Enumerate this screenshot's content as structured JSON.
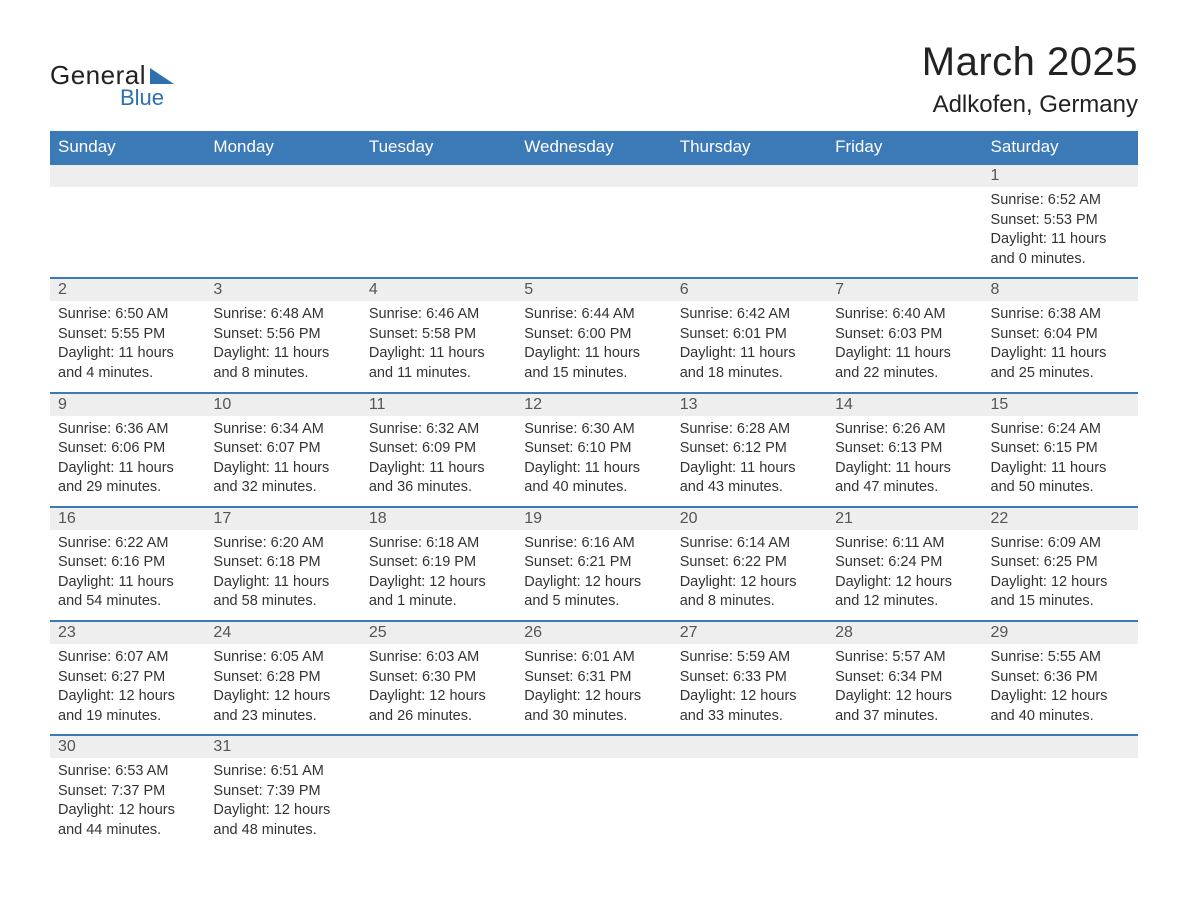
{
  "logo": {
    "text1": "General",
    "text2": "Blue"
  },
  "title": "March 2025",
  "location": "Adlkofen, Germany",
  "colors": {
    "header_bg": "#3b79b7",
    "header_text": "#ffffff",
    "row_divider": "#3b79b7",
    "daynum_bg": "#eeeeee",
    "body_text": "#333333",
    "page_bg": "#ffffff",
    "logo_accent": "#2f6fb0"
  },
  "font": {
    "family": "Arial",
    "title_size_pt": 30,
    "location_size_pt": 18,
    "header_size_pt": 13,
    "day_body_size_pt": 11
  },
  "weekdays": [
    "Sunday",
    "Monday",
    "Tuesday",
    "Wednesday",
    "Thursday",
    "Friday",
    "Saturday"
  ],
  "weeks": [
    [
      null,
      null,
      null,
      null,
      null,
      null,
      {
        "n": "1",
        "sunrise": "Sunrise: 6:52 AM",
        "sunset": "Sunset: 5:53 PM",
        "daylight": "Daylight: 11 hours and 0 minutes."
      }
    ],
    [
      {
        "n": "2",
        "sunrise": "Sunrise: 6:50 AM",
        "sunset": "Sunset: 5:55 PM",
        "daylight": "Daylight: 11 hours and 4 minutes."
      },
      {
        "n": "3",
        "sunrise": "Sunrise: 6:48 AM",
        "sunset": "Sunset: 5:56 PM",
        "daylight": "Daylight: 11 hours and 8 minutes."
      },
      {
        "n": "4",
        "sunrise": "Sunrise: 6:46 AM",
        "sunset": "Sunset: 5:58 PM",
        "daylight": "Daylight: 11 hours and 11 minutes."
      },
      {
        "n": "5",
        "sunrise": "Sunrise: 6:44 AM",
        "sunset": "Sunset: 6:00 PM",
        "daylight": "Daylight: 11 hours and 15 minutes."
      },
      {
        "n": "6",
        "sunrise": "Sunrise: 6:42 AM",
        "sunset": "Sunset: 6:01 PM",
        "daylight": "Daylight: 11 hours and 18 minutes."
      },
      {
        "n": "7",
        "sunrise": "Sunrise: 6:40 AM",
        "sunset": "Sunset: 6:03 PM",
        "daylight": "Daylight: 11 hours and 22 minutes."
      },
      {
        "n": "8",
        "sunrise": "Sunrise: 6:38 AM",
        "sunset": "Sunset: 6:04 PM",
        "daylight": "Daylight: 11 hours and 25 minutes."
      }
    ],
    [
      {
        "n": "9",
        "sunrise": "Sunrise: 6:36 AM",
        "sunset": "Sunset: 6:06 PM",
        "daylight": "Daylight: 11 hours and 29 minutes."
      },
      {
        "n": "10",
        "sunrise": "Sunrise: 6:34 AM",
        "sunset": "Sunset: 6:07 PM",
        "daylight": "Daylight: 11 hours and 32 minutes."
      },
      {
        "n": "11",
        "sunrise": "Sunrise: 6:32 AM",
        "sunset": "Sunset: 6:09 PM",
        "daylight": "Daylight: 11 hours and 36 minutes."
      },
      {
        "n": "12",
        "sunrise": "Sunrise: 6:30 AM",
        "sunset": "Sunset: 6:10 PM",
        "daylight": "Daylight: 11 hours and 40 minutes."
      },
      {
        "n": "13",
        "sunrise": "Sunrise: 6:28 AM",
        "sunset": "Sunset: 6:12 PM",
        "daylight": "Daylight: 11 hours and 43 minutes."
      },
      {
        "n": "14",
        "sunrise": "Sunrise: 6:26 AM",
        "sunset": "Sunset: 6:13 PM",
        "daylight": "Daylight: 11 hours and 47 minutes."
      },
      {
        "n": "15",
        "sunrise": "Sunrise: 6:24 AM",
        "sunset": "Sunset: 6:15 PM",
        "daylight": "Daylight: 11 hours and 50 minutes."
      }
    ],
    [
      {
        "n": "16",
        "sunrise": "Sunrise: 6:22 AM",
        "sunset": "Sunset: 6:16 PM",
        "daylight": "Daylight: 11 hours and 54 minutes."
      },
      {
        "n": "17",
        "sunrise": "Sunrise: 6:20 AM",
        "sunset": "Sunset: 6:18 PM",
        "daylight": "Daylight: 11 hours and 58 minutes."
      },
      {
        "n": "18",
        "sunrise": "Sunrise: 6:18 AM",
        "sunset": "Sunset: 6:19 PM",
        "daylight": "Daylight: 12 hours and 1 minute."
      },
      {
        "n": "19",
        "sunrise": "Sunrise: 6:16 AM",
        "sunset": "Sunset: 6:21 PM",
        "daylight": "Daylight: 12 hours and 5 minutes."
      },
      {
        "n": "20",
        "sunrise": "Sunrise: 6:14 AM",
        "sunset": "Sunset: 6:22 PM",
        "daylight": "Daylight: 12 hours and 8 minutes."
      },
      {
        "n": "21",
        "sunrise": "Sunrise: 6:11 AM",
        "sunset": "Sunset: 6:24 PM",
        "daylight": "Daylight: 12 hours and 12 minutes."
      },
      {
        "n": "22",
        "sunrise": "Sunrise: 6:09 AM",
        "sunset": "Sunset: 6:25 PM",
        "daylight": "Daylight: 12 hours and 15 minutes."
      }
    ],
    [
      {
        "n": "23",
        "sunrise": "Sunrise: 6:07 AM",
        "sunset": "Sunset: 6:27 PM",
        "daylight": "Daylight: 12 hours and 19 minutes."
      },
      {
        "n": "24",
        "sunrise": "Sunrise: 6:05 AM",
        "sunset": "Sunset: 6:28 PM",
        "daylight": "Daylight: 12 hours and 23 minutes."
      },
      {
        "n": "25",
        "sunrise": "Sunrise: 6:03 AM",
        "sunset": "Sunset: 6:30 PM",
        "daylight": "Daylight: 12 hours and 26 minutes."
      },
      {
        "n": "26",
        "sunrise": "Sunrise: 6:01 AM",
        "sunset": "Sunset: 6:31 PM",
        "daylight": "Daylight: 12 hours and 30 minutes."
      },
      {
        "n": "27",
        "sunrise": "Sunrise: 5:59 AM",
        "sunset": "Sunset: 6:33 PM",
        "daylight": "Daylight: 12 hours and 33 minutes."
      },
      {
        "n": "28",
        "sunrise": "Sunrise: 5:57 AM",
        "sunset": "Sunset: 6:34 PM",
        "daylight": "Daylight: 12 hours and 37 minutes."
      },
      {
        "n": "29",
        "sunrise": "Sunrise: 5:55 AM",
        "sunset": "Sunset: 6:36 PM",
        "daylight": "Daylight: 12 hours and 40 minutes."
      }
    ],
    [
      {
        "n": "30",
        "sunrise": "Sunrise: 6:53 AM",
        "sunset": "Sunset: 7:37 PM",
        "daylight": "Daylight: 12 hours and 44 minutes."
      },
      {
        "n": "31",
        "sunrise": "Sunrise: 6:51 AM",
        "sunset": "Sunset: 7:39 PM",
        "daylight": "Daylight: 12 hours and 48 minutes."
      },
      null,
      null,
      null,
      null,
      null
    ]
  ]
}
